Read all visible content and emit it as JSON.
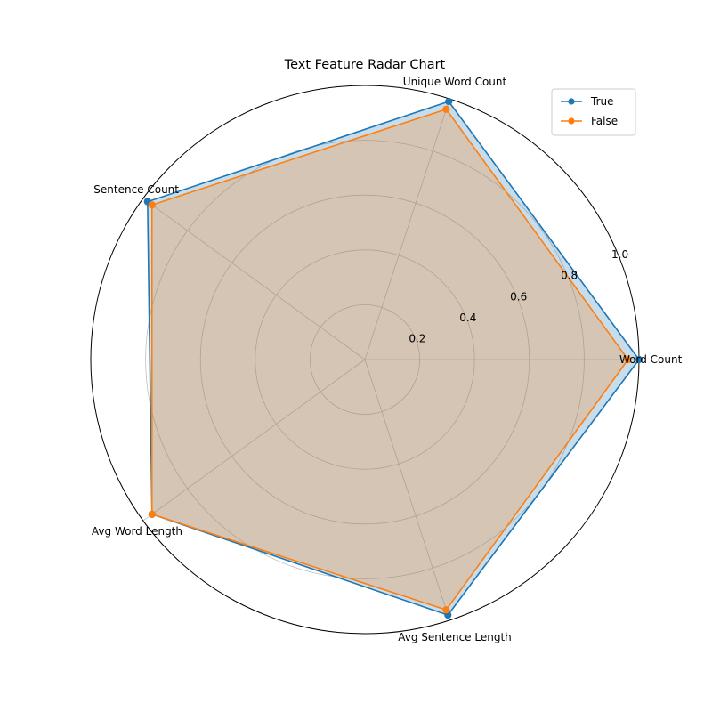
{
  "chart_data": {
    "type": "radar",
    "title": "Text Feature Radar Chart",
    "axes": [
      "Word Count",
      "Unique Word Count",
      "Sentence Count",
      "Avg Word Length",
      "Avg Sentence Length"
    ],
    "rlim": [
      0,
      1.0
    ],
    "rticks": [
      "0.2",
      "0.4",
      "0.6",
      "0.8",
      "1.0"
    ],
    "rtick_values": [
      0.2,
      0.4,
      0.6,
      0.8,
      1.0
    ],
    "grid": true,
    "legend_position": "top-right",
    "series": [
      {
        "name": "True",
        "values": [
          1.0,
          0.99,
          0.98,
          0.96,
          0.98
        ],
        "color": "#1f77b4",
        "fill": "#1f77b4"
      },
      {
        "name": "False",
        "values": [
          0.96,
          0.96,
          0.96,
          0.96,
          0.96
        ],
        "color": "#ff7f0e",
        "fill": "#ff7f0e"
      }
    ]
  }
}
